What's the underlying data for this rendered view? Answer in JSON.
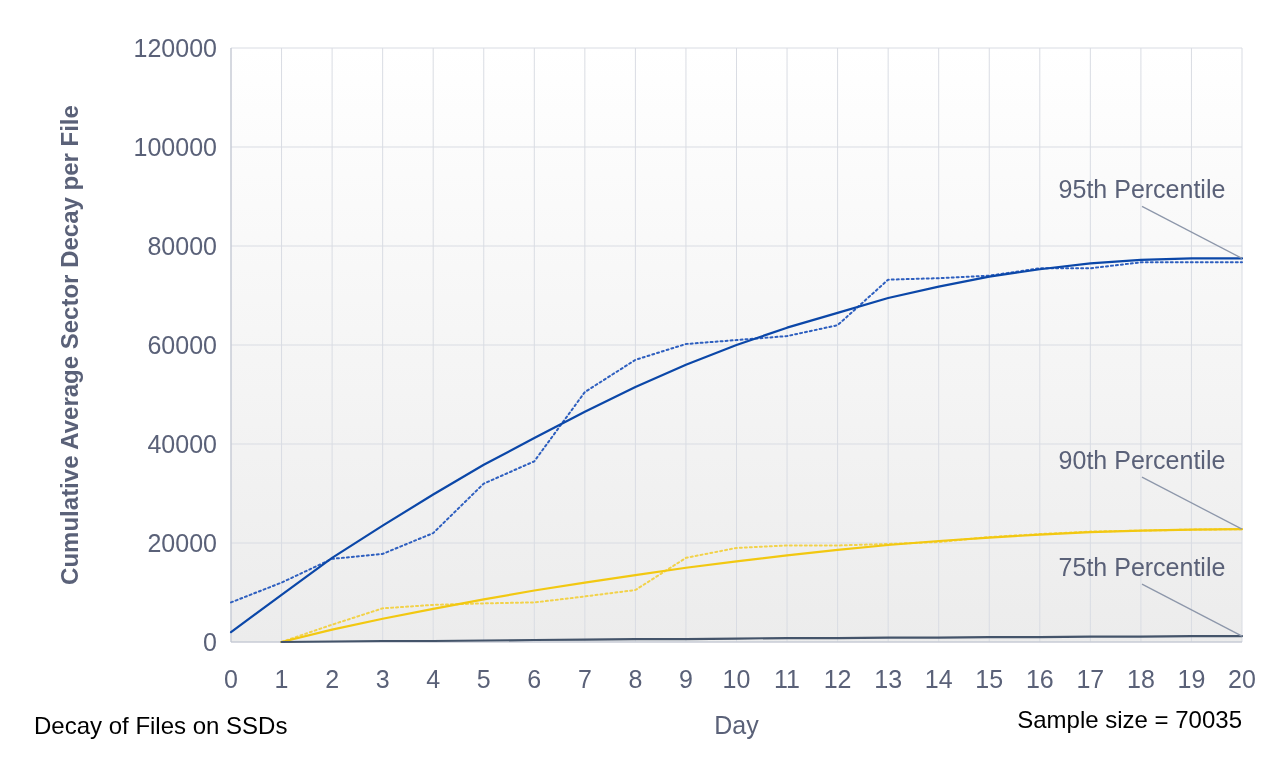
{
  "chart_data": {
    "type": "line",
    "xlabel": "Day",
    "ylabel": "Cumulative Average Sector Decay per File",
    "x": [
      0,
      1,
      2,
      3,
      4,
      5,
      6,
      7,
      8,
      9,
      10,
      11,
      12,
      13,
      14,
      15,
      16,
      17,
      18,
      19,
      20
    ],
    "xlim": [
      0,
      20
    ],
    "xticks": [
      0,
      1,
      2,
      3,
      4,
      5,
      6,
      7,
      8,
      9,
      10,
      11,
      12,
      13,
      14,
      15,
      16,
      17,
      18,
      19,
      20
    ],
    "ylim": [
      0,
      120000
    ],
    "yticks": [
      0,
      20000,
      40000,
      60000,
      80000,
      100000,
      120000
    ],
    "grid": true,
    "marker": "none",
    "series": [
      {
        "color": "#2e5fbf",
        "line_style": "dotted",
        "values": [
          8000,
          12000,
          16800,
          17800,
          22000,
          32000,
          36500,
          50500,
          57000,
          60200,
          61000,
          61800,
          64000,
          73200,
          73500,
          74000,
          75500,
          75500,
          76700,
          76700,
          76700
        ]
      },
      {
        "name": "95th Percentile",
        "color": "#0b47a8",
        "line_style": "solid",
        "values": [
          2000,
          9500,
          17000,
          23500,
          29800,
          35800,
          41200,
          46500,
          51500,
          56000,
          60000,
          63500,
          66500,
          69500,
          71800,
          73800,
          75300,
          76500,
          77200,
          77500,
          77500
        ]
      },
      {
        "color": "#f2d24a",
        "line_style": "dotted",
        "values": [
          null,
          0,
          3500,
          6800,
          7500,
          7800,
          8000,
          9200,
          10500,
          17000,
          19000,
          19500,
          19500,
          19800,
          20200,
          21200,
          21800,
          22300,
          22500,
          22700,
          22800
        ]
      },
      {
        "name": "90th Percentile",
        "color": "#f2c811",
        "line_style": "solid",
        "values": [
          null,
          0,
          2500,
          4700,
          6700,
          8600,
          10400,
          12000,
          13500,
          15000,
          16300,
          17500,
          18600,
          19600,
          20400,
          21100,
          21700,
          22200,
          22500,
          22700,
          22800
        ]
      },
      {
        "name": "75th Percentile",
        "color": "#44546a",
        "line_style": "solid",
        "values": [
          null,
          0,
          100,
          200,
          200,
          300,
          400,
          500,
          600,
          600,
          700,
          800,
          800,
          900,
          900,
          1000,
          1000,
          1100,
          1100,
          1200,
          1200
        ]
      }
    ],
    "annotations": [
      "Decay of Files on SSDs",
      "Sample size = 70035"
    ]
  }
}
